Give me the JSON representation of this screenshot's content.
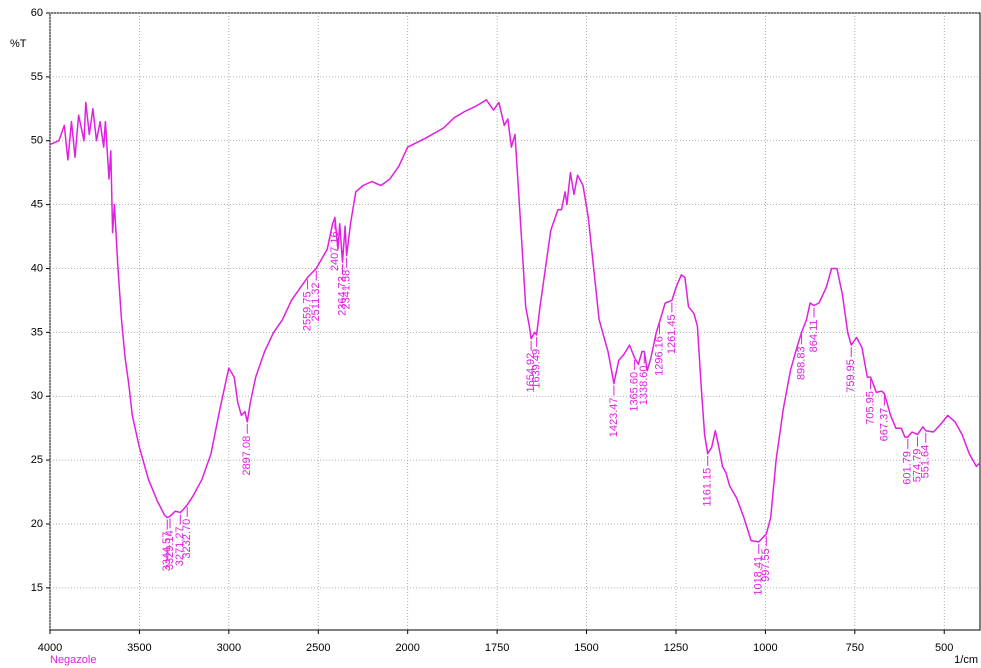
{
  "chart_data": {
    "type": "line",
    "y_label": "%T",
    "x_label": "1/cm",
    "sample": "Negazole",
    "xlim": [
      4000,
      400
    ],
    "x_scale_break": 2000,
    "xticks": [
      4000,
      3500,
      3000,
      2500,
      2000,
      1750,
      1500,
      1250,
      1000,
      750,
      500
    ],
    "ylim": [
      11.7,
      60
    ],
    "yticks": [
      15,
      20,
      25,
      30,
      35,
      40,
      45,
      50,
      55,
      60
    ],
    "grid": true,
    "series": [
      {
        "color": "#e020e0",
        "x": [
          4000,
          3950,
          3920,
          3900,
          3880,
          3860,
          3840,
          3810,
          3800,
          3780,
          3760,
          3740,
          3720,
          3700,
          3690,
          3670,
          3660,
          3650,
          3640,
          3620,
          3600,
          3580,
          3560,
          3540,
          3500,
          3450,
          3400,
          3360,
          3344.57,
          3329.14,
          3300,
          3271.27,
          3250,
          3232.7,
          3200,
          3150,
          3100,
          3050,
          3000,
          2970,
          2950,
          2930,
          2910,
          2897.08,
          2880,
          2850,
          2800,
          2750,
          2700,
          2650,
          2600,
          2559.75,
          2511.32,
          2450,
          2420,
          2407.16,
          2390,
          2380,
          2364.73,
          2350,
          2341.58,
          2320,
          2290,
          2250,
          2200,
          2150,
          2100,
          2050,
          2000,
          1950,
          1900,
          1870,
          1840,
          1810,
          1780,
          1760,
          1745,
          1730,
          1720,
          1710,
          1700,
          1690,
          1680,
          1670,
          1660,
          1654.92,
          1645,
          1639.49,
          1630,
          1615,
          1600,
          1580,
          1570,
          1560,
          1555,
          1545,
          1535,
          1525,
          1510,
          1495,
          1480,
          1465,
          1450,
          1440,
          1430,
          1423.47,
          1410,
          1395,
          1380,
          1365.6,
          1355,
          1345,
          1338.6,
          1330,
          1320,
          1305,
          1296.16,
          1280,
          1261.45,
          1250,
          1235,
          1225,
          1215,
          1200,
          1190,
          1180,
          1170,
          1161.15,
          1150,
          1140,
          1130,
          1120,
          1110,
          1100,
          1080,
          1060,
          1040,
          1018.41,
          1005,
          997.55,
          985,
          970,
          950,
          930,
          910,
          898.83,
          885,
          875,
          864.11,
          850,
          830,
          815,
          800,
          785,
          770,
          759.95,
          745,
          730,
          715,
          705.95,
          690,
          675,
          667.37,
          650,
          635,
          620,
          610,
          601.79,
          590,
          574.79,
          560,
          551.64,
          530,
          510,
          490,
          470,
          450,
          430,
          410,
          400
        ],
        "values": [
          49.7,
          50,
          51.2,
          48.5,
          51.5,
          48.7,
          52,
          50,
          53,
          50.5,
          52.5,
          50,
          51.5,
          49.5,
          51.5,
          47,
          49.2,
          42.8,
          45,
          40,
          36,
          33,
          31,
          28.5,
          26,
          23.5,
          21.8,
          20.7,
          20.5,
          20.6,
          21,
          20.9,
          21.2,
          21.5,
          22.2,
          23.5,
          25.5,
          29,
          32.2,
          31.5,
          29.5,
          28.5,
          28.8,
          28,
          29.5,
          31.5,
          33.5,
          35,
          36,
          37.5,
          38.5,
          39.3,
          40,
          41.5,
          43.5,
          44,
          41.5,
          43.5,
          40.5,
          43.3,
          41,
          43.5,
          46,
          46.5,
          46.8,
          46.5,
          47,
          48,
          49.5,
          50.2,
          51,
          51.8,
          52.3,
          52.7,
          53.2,
          52.4,
          53,
          51.2,
          51.7,
          49.5,
          50.5,
          46,
          41.5,
          37,
          35.5,
          34.5,
          35,
          34.8,
          37,
          40,
          43,
          44.6,
          44.6,
          46,
          45,
          47.5,
          45.8,
          47.3,
          46.5,
          44,
          40,
          36,
          34.5,
          33.5,
          32,
          31,
          32.8,
          33.3,
          34,
          33,
          32.5,
          33.5,
          33.5,
          32,
          33,
          35,
          35.8,
          37.3,
          37.5,
          38.5,
          39.5,
          39.3,
          37,
          36.5,
          35.5,
          31,
          27,
          25.5,
          26,
          27.3,
          26,
          24.5,
          24,
          23,
          22,
          20.5,
          18.7,
          18.6,
          19,
          19.2,
          20.5,
          25,
          29,
          32,
          34,
          35,
          36,
          37.3,
          37.1,
          37.3,
          38.5,
          40,
          40,
          38,
          35,
          34,
          34.6,
          33.8,
          31.5,
          31.5,
          30.3,
          30.4,
          30.2,
          28.5,
          27.5,
          27.5,
          26.8,
          26.8,
          27.2,
          27,
          27.6,
          27.3,
          27.2,
          27.8,
          28.5,
          28,
          27,
          25.5,
          24.5,
          24.8
        ]
      }
    ],
    "peaks": [
      3344.57,
      3329.14,
      3271.27,
      {
        "value": 3232.7,
        "label": "3232.70"
      },
      2897.08,
      2559.75,
      2511.32,
      2407.16,
      2364.73,
      2341.58,
      1654.92,
      1639.49,
      1423.47,
      {
        "value": 1365.6,
        "label": "1365.60"
      },
      {
        "value": 1338.6,
        "label": "1338.60"
      },
      1296.16,
      1261.45,
      1161.15,
      1018.41,
      997.55,
      898.83,
      864.11,
      759.95,
      705.95,
      667.37,
      601.79,
      574.79,
      551.64
    ]
  }
}
